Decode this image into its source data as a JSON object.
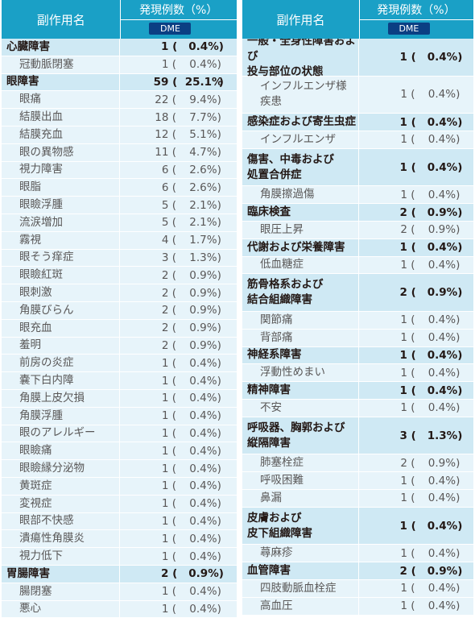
{
  "header": {
    "col_name": "副作用名",
    "col_count": "発現例数（%）",
    "group": "DME"
  },
  "left": [
    {
      "name": "心臓障害",
      "n": "1",
      "pct": "0.4%",
      "type": "major"
    },
    {
      "name": "冠動脈閉塞",
      "n": "1",
      "pct": "0.4%",
      "type": "minor"
    },
    {
      "name": "眼障害",
      "n": "59",
      "pct": "25.1%",
      "type": "major"
    },
    {
      "name": "眼痛",
      "n": "22",
      "pct": "9.4%",
      "type": "minor"
    },
    {
      "name": "結膜出血",
      "n": "18",
      "pct": "7.7%",
      "type": "minor"
    },
    {
      "name": "結膜充血",
      "n": "12",
      "pct": "5.1%",
      "type": "minor"
    },
    {
      "name": "眼の異物感",
      "n": "11",
      "pct": "4.7%",
      "type": "minor"
    },
    {
      "name": "視力障害",
      "n": "6",
      "pct": "2.6%",
      "type": "minor"
    },
    {
      "name": "眼脂",
      "n": "6",
      "pct": "2.6%",
      "type": "minor"
    },
    {
      "name": "眼瞼浮腫",
      "n": "5",
      "pct": "2.1%",
      "type": "minor"
    },
    {
      "name": "流涙増加",
      "n": "5",
      "pct": "2.1%",
      "type": "minor"
    },
    {
      "name": "霧視",
      "n": "4",
      "pct": "1.7%",
      "type": "minor"
    },
    {
      "name": "眼そう痒症",
      "n": "3",
      "pct": "1.3%",
      "type": "minor"
    },
    {
      "name": "眼瞼紅斑",
      "n": "2",
      "pct": "0.9%",
      "type": "minor"
    },
    {
      "name": "眼刺激",
      "n": "2",
      "pct": "0.9%",
      "type": "minor"
    },
    {
      "name": "角膜びらん",
      "n": "2",
      "pct": "0.9%",
      "type": "minor"
    },
    {
      "name": "眼充血",
      "n": "2",
      "pct": "0.9%",
      "type": "minor"
    },
    {
      "name": "羞明",
      "n": "2",
      "pct": "0.9%",
      "type": "minor"
    },
    {
      "name": "前房の炎症",
      "n": "1",
      "pct": "0.4%",
      "type": "minor"
    },
    {
      "name": "嚢下白内障",
      "n": "1",
      "pct": "0.4%",
      "type": "minor"
    },
    {
      "name": "角膜上皮欠損",
      "n": "1",
      "pct": "0.4%",
      "type": "minor"
    },
    {
      "name": "角膜浮腫",
      "n": "1",
      "pct": "0.4%",
      "type": "minor"
    },
    {
      "name": "眼のアレルギー",
      "n": "1",
      "pct": "0.4%",
      "type": "minor"
    },
    {
      "name": "眼瞼痛",
      "n": "1",
      "pct": "0.4%",
      "type": "minor"
    },
    {
      "name": "眼瞼縁分泌物",
      "n": "1",
      "pct": "0.4%",
      "type": "minor"
    },
    {
      "name": "黄斑症",
      "n": "1",
      "pct": "0.4%",
      "type": "minor"
    },
    {
      "name": "変視症",
      "n": "1",
      "pct": "0.4%",
      "type": "minor"
    },
    {
      "name": "眼部不快感",
      "n": "1",
      "pct": "0.4%",
      "type": "minor"
    },
    {
      "name": "潰瘍性角膜炎",
      "n": "1",
      "pct": "0.4%",
      "type": "minor"
    },
    {
      "name": "視力低下",
      "n": "1",
      "pct": "0.4%",
      "type": "minor"
    },
    {
      "name": "胃腸障害",
      "n": "2",
      "pct": "0.9%",
      "type": "major"
    },
    {
      "name": "腸閉塞",
      "n": "1",
      "pct": "0.4%",
      "type": "minor"
    },
    {
      "name": "悪心",
      "n": "1",
      "pct": "0.4%",
      "type": "minor"
    }
  ],
  "right": [
    {
      "name": "一般・全身性障害および\n投与部位の状態",
      "n": "1",
      "pct": "0.4%",
      "type": "major",
      "h": 2
    },
    {
      "name": "インフルエンザ様\n疾患",
      "n": "1",
      "pct": "0.4%",
      "type": "minor",
      "h": 2
    },
    {
      "name": "感染症および寄生虫症",
      "n": "1",
      "pct": "0.4%",
      "type": "major"
    },
    {
      "name": "インフルエンザ",
      "n": "1",
      "pct": "0.4%",
      "type": "minor"
    },
    {
      "name": "傷害、中毒および\n処置合併症",
      "n": "1",
      "pct": "0.4%",
      "type": "major",
      "h": 2
    },
    {
      "name": "角膜擦過傷",
      "n": "1",
      "pct": "0.4%",
      "type": "minor"
    },
    {
      "name": "臨床検査",
      "n": "2",
      "pct": "0.9%",
      "type": "major"
    },
    {
      "name": "眼圧上昇",
      "n": "2",
      "pct": "0.9%",
      "type": "minor"
    },
    {
      "name": "代謝および栄養障害",
      "n": "1",
      "pct": "0.4%",
      "type": "major"
    },
    {
      "name": "低血糖症",
      "n": "1",
      "pct": "0.4%",
      "type": "minor"
    },
    {
      "name": "筋骨格系および\n結合組織障害",
      "n": "2",
      "pct": "0.9%",
      "type": "major",
      "h": 2
    },
    {
      "name": "関節痛",
      "n": "1",
      "pct": "0.4%",
      "type": "minor"
    },
    {
      "name": "背部痛",
      "n": "1",
      "pct": "0.4%",
      "type": "minor"
    },
    {
      "name": "神経系障害",
      "n": "1",
      "pct": "0.4%",
      "type": "major"
    },
    {
      "name": "浮動性めまい",
      "n": "1",
      "pct": "0.4%",
      "type": "minor"
    },
    {
      "name": "精神障害",
      "n": "1",
      "pct": "0.4%",
      "type": "major"
    },
    {
      "name": "不安",
      "n": "1",
      "pct": "0.4%",
      "type": "minor"
    },
    {
      "name": "呼吸器、胸郭および\n縦隔障害",
      "n": "3",
      "pct": "1.3%",
      "type": "major",
      "h": 2
    },
    {
      "name": "肺塞栓症",
      "n": "2",
      "pct": "0.9%",
      "type": "minor"
    },
    {
      "name": "呼吸困難",
      "n": "1",
      "pct": "0.4%",
      "type": "minor"
    },
    {
      "name": "鼻漏",
      "n": "1",
      "pct": "0.4%",
      "type": "minor"
    },
    {
      "name": "皮膚および\n皮下組織障害",
      "n": "1",
      "pct": "0.4%",
      "type": "major",
      "h": 2
    },
    {
      "name": "蕁麻疹",
      "n": "1",
      "pct": "0.4%",
      "type": "minor"
    },
    {
      "name": "血管障害",
      "n": "2",
      "pct": "0.9%",
      "type": "major"
    },
    {
      "name": "四肢動脈血栓症",
      "n": "1",
      "pct": "0.4%",
      "type": "minor"
    },
    {
      "name": "高血圧",
      "n": "1",
      "pct": "0.4%",
      "type": "minor"
    }
  ]
}
